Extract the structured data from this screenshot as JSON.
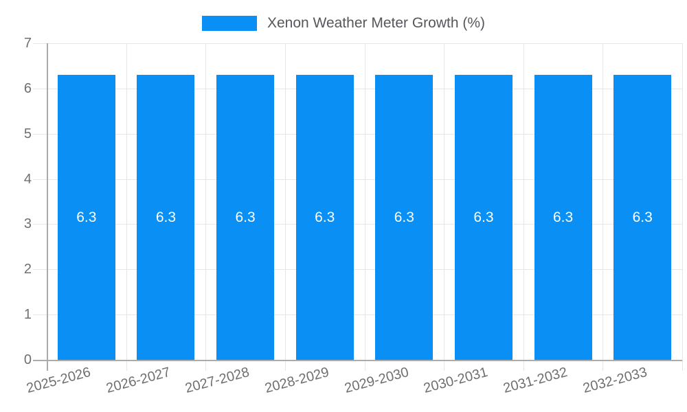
{
  "legend": {
    "label": "Xenon Weather Meter Growth (%)"
  },
  "chart_data": {
    "type": "bar",
    "title": "Xenon Weather Meter Growth (%)",
    "categories": [
      "2025-2026",
      "2026-2027",
      "2027-2028",
      "2028-2029",
      "2029-2030",
      "2030-2031",
      "2031-2032",
      "2032-2033"
    ],
    "values": [
      6.3,
      6.3,
      6.3,
      6.3,
      6.3,
      6.3,
      6.3,
      6.3
    ],
    "value_labels": [
      "6.3",
      "6.3",
      "6.3",
      "6.3",
      "6.3",
      "6.3",
      "6.3",
      "6.3"
    ],
    "xlabel": "",
    "ylabel": "",
    "ylim": [
      0,
      7
    ],
    "yticks": [
      0,
      1,
      2,
      3,
      4,
      5,
      6,
      7
    ],
    "grid": true,
    "legend_position": "top-center",
    "bar_color": "#0a90f5",
    "value_label_color": "#ffffff"
  },
  "style": {
    "background": "#ffffff",
    "grid_color": "#e6e6e6",
    "axis_color": "#ababab",
    "tick_label_color": "#6f6f6f",
    "legend_text_color": "#54585c",
    "x_label_rotation_deg": -15
  }
}
